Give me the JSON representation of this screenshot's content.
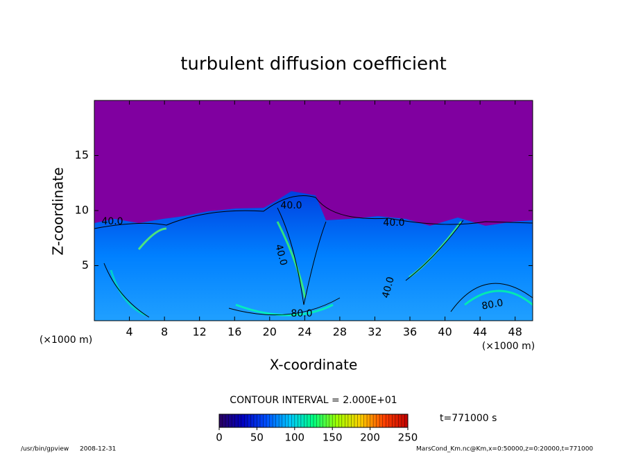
{
  "chart_data": {
    "type": "contour",
    "title": "turbulent diffusion coefficient",
    "x_label": "X-coordinate",
    "y_label": "Z-coordinate",
    "x_unit": "(×1000 m)",
    "y_unit": "(×1000 m)",
    "xlim": [
      0,
      50
    ],
    "xticks": [
      4,
      8,
      12,
      16,
      20,
      24,
      28,
      32,
      36,
      40,
      44,
      48
    ],
    "ylim": [
      0,
      20
    ],
    "yticks": [
      5,
      10,
      15
    ],
    "contour_interval": "CONTOUR INTERVAL = 2.000E+01",
    "contour_labels": [
      "40.0",
      "40.0",
      "40.0",
      "40.0",
      "40.0",
      "80.0",
      "80.0"
    ],
    "time_label": "t=771000 s",
    "colorbar": {
      "lim": [
        0,
        250
      ],
      "ticks": [
        0,
        50,
        100,
        150,
        200,
        250
      ],
      "colors": [
        "#2a0060",
        "#0000c0",
        "#0050ff",
        "#00c8ff",
        "#00ff80",
        "#a0ff00",
        "#ffd000",
        "#ff4000",
        "#c00000"
      ]
    },
    "background_color": "#8000a0",
    "footer_left": "/usr/bin/gpview",
    "footer_date": "2008-12-31",
    "footer_right": "MarsCond_Km.nc@Km,x=0:50000,z=0:20000,t=771000"
  }
}
